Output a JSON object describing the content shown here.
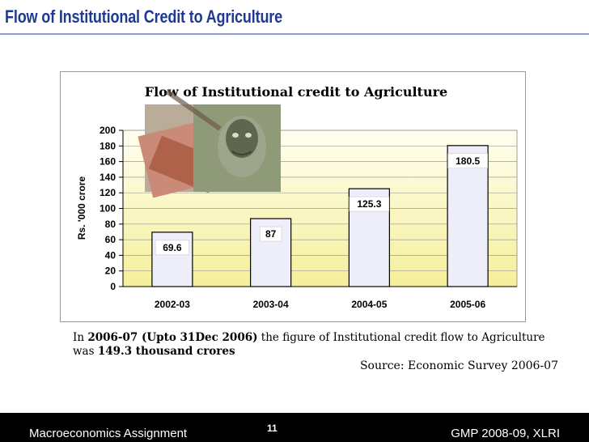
{
  "slide": {
    "title": "Flow of Institutional Credit to Agriculture",
    "note_parts": [
      {
        "text": "In ",
        "bold": false
      },
      {
        "text": "2006-07 (Upto 31Dec 2006)",
        "bold": true
      },
      {
        "text": " the figure of Institutional credit flow to Agriculture was ",
        "bold": false
      },
      {
        "text": "149.3 thousand crores",
        "bold": true
      }
    ],
    "source": "Source: Economic Survey 2006-07"
  },
  "footer": {
    "left": "Macroeconomics Assignment",
    "page": "11",
    "right": "GMP 2008-09, XLRI"
  },
  "colors": {
    "title": "#1f3a93",
    "plot_bg_top": "#fffff0",
    "plot_bg_bottom": "#f5ef9a",
    "bar_fill": "#eeeefb",
    "bar_stroke": "#000000"
  },
  "chart_data": {
    "type": "bar",
    "title": "Flow of Institutional credit to Agriculture",
    "xlabel": "",
    "ylabel": "Rs. '000 crore",
    "categories": [
      "2002-03",
      "2003-04",
      "2004-05",
      "2005-06"
    ],
    "values": [
      69.6,
      87,
      125.3,
      180.5
    ],
    "data_labels": [
      "69.6",
      "87",
      "125.3",
      "180.5"
    ],
    "ylim": [
      0,
      200
    ],
    "yticks": [
      0,
      20,
      40,
      60,
      80,
      100,
      120,
      140,
      160,
      180,
      200
    ],
    "grid": true,
    "legend": "none",
    "decoration": "currency-notes-image"
  }
}
